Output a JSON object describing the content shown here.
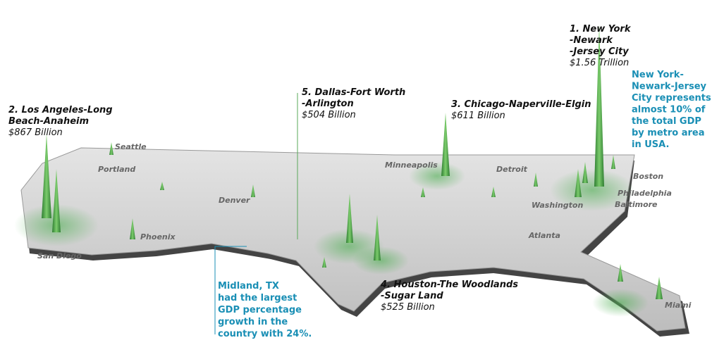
{
  "rankings": [
    {
      "lines": [
        "1. New York",
        "-Newark",
        "-Jersey City"
      ],
      "value": "$1.56 Trillion"
    },
    {
      "lines": [
        "2. Los Angeles-Long",
        "Beach-Anaheim"
      ],
      "value": "$867 Billion"
    },
    {
      "lines": [
        "3. Chicago-Naperville-Elgin"
      ],
      "value": "$611 Billion"
    },
    {
      "lines": [
        "4. Houston-The Woodlands",
        "-Sugar Land"
      ],
      "value": "$525 Billion"
    },
    {
      "lines": [
        "5. Dallas-Fort Worth",
        "-Arlington"
      ],
      "value": "$504 Billion"
    }
  ],
  "callouts": [
    {
      "lines": [
        "New York-",
        "Newark-Jersey",
        "City represents",
        "almost 10% of",
        "the total GDP",
        "by metro area",
        "in USA."
      ]
    },
    {
      "lines": [
        "Midland, TX",
        "had the largest",
        "GDP percentage",
        "growth in the",
        "country with 24%."
      ]
    }
  ],
  "cities": [
    "Seattle",
    "Portland",
    "Denver",
    "Phoenix",
    "San Diego",
    "Minneapolis",
    "Detroit",
    "Boston",
    "Philadelphia",
    "Baltimore",
    "Washington",
    "Atlanta",
    "Miami"
  ]
}
